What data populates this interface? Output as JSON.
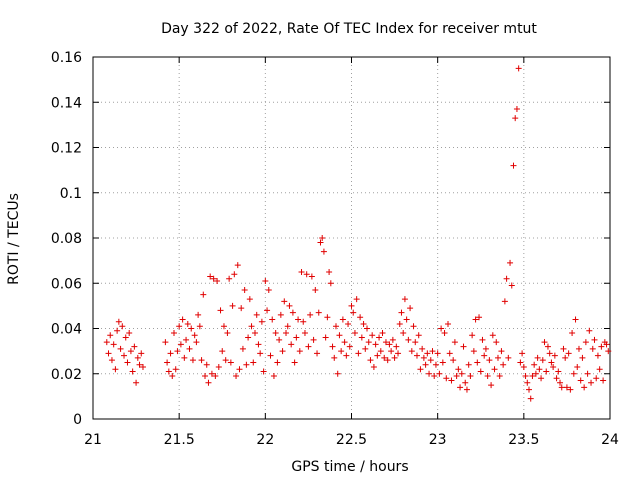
{
  "chart_data": {
    "type": "scatter",
    "title": "Day 322 of 2022, Rate Of TEC Index for receiver mtut",
    "xlabel": "GPS time / hours",
    "ylabel": "ROTI / TECUs",
    "xlim": [
      21,
      24
    ],
    "ylim": [
      0,
      0.16
    ],
    "grid": true,
    "xticks": [
      21,
      21.5,
      22,
      22.5,
      23,
      23.5,
      24
    ],
    "xtick_labels": [
      "21",
      "21.5",
      "22",
      "22.5",
      "23",
      "23.5",
      "24"
    ],
    "yticks": [
      0,
      0.02,
      0.04,
      0.06,
      0.08,
      0.1,
      0.12,
      0.14,
      0.16
    ],
    "ytick_labels": [
      "0",
      "0.02",
      "0.04",
      "0.06",
      "0.08",
      "0.1",
      "0.12",
      "0.14",
      "0.16"
    ],
    "marker": "+",
    "color": "#e00000",
    "series": [
      {
        "name": "ROTI",
        "points": [
          [
            21.08,
            0.034
          ],
          [
            21.09,
            0.029
          ],
          [
            21.1,
            0.037
          ],
          [
            21.11,
            0.026
          ],
          [
            21.12,
            0.033
          ],
          [
            21.13,
            0.022
          ],
          [
            21.14,
            0.039
          ],
          [
            21.15,
            0.043
          ],
          [
            21.16,
            0.031
          ],
          [
            21.17,
            0.041
          ],
          [
            21.18,
            0.028
          ],
          [
            21.19,
            0.036
          ],
          [
            21.2,
            0.025
          ],
          [
            21.21,
            0.038
          ],
          [
            21.22,
            0.03
          ],
          [
            21.23,
            0.021
          ],
          [
            21.24,
            0.032
          ],
          [
            21.25,
            0.016
          ],
          [
            21.26,
            0.027
          ],
          [
            21.27,
            0.024
          ],
          [
            21.28,
            0.029
          ],
          [
            21.29,
            0.023
          ],
          [
            21.42,
            0.034
          ],
          [
            21.43,
            0.025
          ],
          [
            21.44,
            0.021
          ],
          [
            21.45,
            0.029
          ],
          [
            21.46,
            0.019
          ],
          [
            21.47,
            0.038
          ],
          [
            21.48,
            0.022
          ],
          [
            21.49,
            0.03
          ],
          [
            21.5,
            0.041
          ],
          [
            21.51,
            0.033
          ],
          [
            21.52,
            0.044
          ],
          [
            21.53,
            0.027
          ],
          [
            21.54,
            0.035
          ],
          [
            21.55,
            0.042
          ],
          [
            21.56,
            0.031
          ],
          [
            21.57,
            0.04
          ],
          [
            21.58,
            0.026
          ],
          [
            21.59,
            0.037
          ],
          [
            21.6,
            0.034
          ],
          [
            21.61,
            0.046
          ],
          [
            21.62,
            0.041
          ],
          [
            21.63,
            0.026
          ],
          [
            21.64,
            0.055
          ],
          [
            21.65,
            0.019
          ],
          [
            21.66,
            0.024
          ],
          [
            21.67,
            0.016
          ],
          [
            21.68,
            0.063
          ],
          [
            21.69,
            0.02
          ],
          [
            21.7,
            0.062
          ],
          [
            21.71,
            0.019
          ],
          [
            21.72,
            0.061
          ],
          [
            21.73,
            0.023
          ],
          [
            21.74,
            0.048
          ],
          [
            21.75,
            0.03
          ],
          [
            21.76,
            0.041
          ],
          [
            21.77,
            0.026
          ],
          [
            21.78,
            0.038
          ],
          [
            21.79,
            0.062
          ],
          [
            21.8,
            0.025
          ],
          [
            21.81,
            0.05
          ],
          [
            21.82,
            0.064
          ],
          [
            21.83,
            0.019
          ],
          [
            21.84,
            0.068
          ],
          [
            21.85,
            0.022
          ],
          [
            21.86,
            0.049
          ],
          [
            21.87,
            0.031
          ],
          [
            21.88,
            0.057
          ],
          [
            21.89,
            0.024
          ],
          [
            21.9,
            0.036
          ],
          [
            21.91,
            0.053
          ],
          [
            21.92,
            0.041
          ],
          [
            21.93,
            0.025
          ],
          [
            21.94,
            0.038
          ],
          [
            21.95,
            0.046
          ],
          [
            21.96,
            0.033
          ],
          [
            21.97,
            0.029
          ],
          [
            21.98,
            0.043
          ],
          [
            21.99,
            0.021
          ],
          [
            22.0,
            0.061
          ],
          [
            22.01,
            0.048
          ],
          [
            22.02,
            0.057
          ],
          [
            22.03,
            0.028
          ],
          [
            22.04,
            0.044
          ],
          [
            22.05,
            0.019
          ],
          [
            22.06,
            0.038
          ],
          [
            22.07,
            0.025
          ],
          [
            22.08,
            0.035
          ],
          [
            22.09,
            0.046
          ],
          [
            22.1,
            0.03
          ],
          [
            22.11,
            0.052
          ],
          [
            22.12,
            0.038
          ],
          [
            22.13,
            0.041
          ],
          [
            22.14,
            0.05
          ],
          [
            22.15,
            0.033
          ],
          [
            22.16,
            0.047
          ],
          [
            22.17,
            0.025
          ],
          [
            22.18,
            0.036
          ],
          [
            22.19,
            0.044
          ],
          [
            22.2,
            0.03
          ],
          [
            22.21,
            0.065
          ],
          [
            22.22,
            0.043
          ],
          [
            22.23,
            0.038
          ],
          [
            22.24,
            0.064
          ],
          [
            22.25,
            0.032
          ],
          [
            22.26,
            0.046
          ],
          [
            22.27,
            0.063
          ],
          [
            22.28,
            0.035
          ],
          [
            22.29,
            0.057
          ],
          [
            22.3,
            0.029
          ],
          [
            22.31,
            0.047
          ],
          [
            22.32,
            0.078
          ],
          [
            22.33,
            0.08
          ],
          [
            22.34,
            0.074
          ],
          [
            22.35,
            0.036
          ],
          [
            22.36,
            0.045
          ],
          [
            22.37,
            0.065
          ],
          [
            22.38,
            0.06
          ],
          [
            22.39,
            0.032
          ],
          [
            22.4,
            0.027
          ],
          [
            22.41,
            0.041
          ],
          [
            22.42,
            0.02
          ],
          [
            22.43,
            0.037
          ],
          [
            22.44,
            0.03
          ],
          [
            22.45,
            0.044
          ],
          [
            22.46,
            0.034
          ],
          [
            22.47,
            0.028
          ],
          [
            22.48,
            0.042
          ],
          [
            22.49,
            0.032
          ],
          [
            22.5,
            0.05
          ],
          [
            22.51,
            0.047
          ],
          [
            22.52,
            0.038
          ],
          [
            22.53,
            0.053
          ],
          [
            22.54,
            0.029
          ],
          [
            22.55,
            0.045
          ],
          [
            22.56,
            0.036
          ],
          [
            22.57,
            0.042
          ],
          [
            22.58,
            0.031
          ],
          [
            22.59,
            0.04
          ],
          [
            22.6,
            0.034
          ],
          [
            22.61,
            0.026
          ],
          [
            22.62,
            0.037
          ],
          [
            22.63,
            0.023
          ],
          [
            22.64,
            0.033
          ],
          [
            22.65,
            0.028
          ],
          [
            22.66,
            0.036
          ],
          [
            22.67,
            0.03
          ],
          [
            22.68,
            0.038
          ],
          [
            22.69,
            0.027
          ],
          [
            22.7,
            0.034
          ],
          [
            22.71,
            0.026
          ],
          [
            22.72,
            0.033
          ],
          [
            22.73,
            0.03
          ],
          [
            22.74,
            0.035
          ],
          [
            22.75,
            0.027
          ],
          [
            22.76,
            0.032
          ],
          [
            22.77,
            0.029
          ],
          [
            22.78,
            0.042
          ],
          [
            22.79,
            0.047
          ],
          [
            22.8,
            0.038
          ],
          [
            22.81,
            0.053
          ],
          [
            22.82,
            0.044
          ],
          [
            22.83,
            0.035
          ],
          [
            22.84,
            0.049
          ],
          [
            22.85,
            0.03
          ],
          [
            22.86,
            0.041
          ],
          [
            22.87,
            0.034
          ],
          [
            22.88,
            0.028
          ],
          [
            22.89,
            0.037
          ],
          [
            22.9,
            0.022
          ],
          [
            22.91,
            0.031
          ],
          [
            22.92,
            0.027
          ],
          [
            22.93,
            0.024
          ],
          [
            22.94,
            0.029
          ],
          [
            22.95,
            0.02
          ],
          [
            22.96,
            0.026
          ],
          [
            22.97,
            0.03
          ],
          [
            22.98,
            0.019
          ],
          [
            22.99,
            0.024
          ],
          [
            23.0,
            0.029
          ],
          [
            23.01,
            0.02
          ],
          [
            23.02,
            0.04
          ],
          [
            23.03,
            0.025
          ],
          [
            23.04,
            0.038
          ],
          [
            23.05,
            0.018
          ],
          [
            23.06,
            0.042
          ],
          [
            23.07,
            0.029
          ],
          [
            23.08,
            0.017
          ],
          [
            23.09,
            0.026
          ],
          [
            23.1,
            0.034
          ],
          [
            23.11,
            0.019
          ],
          [
            23.12,
            0.022
          ],
          [
            23.13,
            0.014
          ],
          [
            23.14,
            0.02
          ],
          [
            23.15,
            0.032
          ],
          [
            23.16,
            0.016
          ],
          [
            23.17,
            0.013
          ],
          [
            23.18,
            0.024
          ],
          [
            23.19,
            0.019
          ],
          [
            23.2,
            0.037
          ],
          [
            23.21,
            0.03
          ],
          [
            23.22,
            0.044
          ],
          [
            23.23,
            0.025
          ],
          [
            23.24,
            0.045
          ],
          [
            23.25,
            0.021
          ],
          [
            23.26,
            0.035
          ],
          [
            23.27,
            0.028
          ],
          [
            23.28,
            0.031
          ],
          [
            23.29,
            0.019
          ],
          [
            23.3,
            0.026
          ],
          [
            23.31,
            0.015
          ],
          [
            23.32,
            0.037
          ],
          [
            23.33,
            0.022
          ],
          [
            23.34,
            0.034
          ],
          [
            23.35,
            0.027
          ],
          [
            23.36,
            0.019
          ],
          [
            23.37,
            0.03
          ],
          [
            23.38,
            0.024
          ],
          [
            23.39,
            0.052
          ],
          [
            23.4,
            0.062
          ],
          [
            23.41,
            0.027
          ],
          [
            23.42,
            0.069
          ],
          [
            23.43,
            0.059
          ],
          [
            23.44,
            0.112
          ],
          [
            23.45,
            0.133
          ],
          [
            23.46,
            0.137
          ],
          [
            23.47,
            0.155
          ],
          [
            23.48,
            0.025
          ],
          [
            23.49,
            0.029
          ],
          [
            23.5,
            0.023
          ],
          [
            23.51,
            0.019
          ],
          [
            23.52,
            0.016
          ],
          [
            23.53,
            0.013
          ],
          [
            23.54,
            0.009
          ],
          [
            23.55,
            0.019
          ],
          [
            23.56,
            0.024
          ],
          [
            23.57,
            0.02
          ],
          [
            23.58,
            0.027
          ],
          [
            23.59,
            0.022
          ],
          [
            23.6,
            0.018
          ],
          [
            23.61,
            0.026
          ],
          [
            23.62,
            0.034
          ],
          [
            23.63,
            0.021
          ],
          [
            23.64,
            0.032
          ],
          [
            23.65,
            0.029
          ],
          [
            23.66,
            0.025
          ],
          [
            23.67,
            0.023
          ],
          [
            23.68,
            0.028
          ],
          [
            23.69,
            0.018
          ],
          [
            23.7,
            0.021
          ],
          [
            23.71,
            0.016
          ],
          [
            23.72,
            0.014
          ],
          [
            23.73,
            0.031
          ],
          [
            23.74,
            0.027
          ],
          [
            23.75,
            0.014
          ],
          [
            23.76,
            0.029
          ],
          [
            23.77,
            0.013
          ],
          [
            23.78,
            0.038
          ],
          [
            23.79,
            0.02
          ],
          [
            23.8,
            0.044
          ],
          [
            23.81,
            0.023
          ],
          [
            23.82,
            0.031
          ],
          [
            23.83,
            0.017
          ],
          [
            23.84,
            0.027
          ],
          [
            23.85,
            0.014
          ],
          [
            23.86,
            0.034
          ],
          [
            23.87,
            0.02
          ],
          [
            23.88,
            0.039
          ],
          [
            23.89,
            0.016
          ],
          [
            23.9,
            0.031
          ],
          [
            23.91,
            0.035
          ],
          [
            23.92,
            0.018
          ],
          [
            23.93,
            0.028
          ],
          [
            23.94,
            0.022
          ],
          [
            23.95,
            0.032
          ],
          [
            23.96,
            0.017
          ],
          [
            23.97,
            0.034
          ],
          [
            23.98,
            0.033
          ],
          [
            23.99,
            0.03
          ]
        ]
      }
    ]
  }
}
